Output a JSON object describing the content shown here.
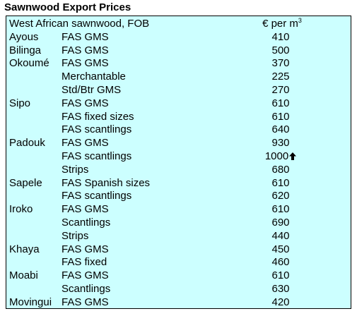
{
  "title": "Sawnwood Export Prices",
  "table": {
    "header": {
      "description": "West African sawnwood, FOB",
      "unit_prefix": "€ per m",
      "unit_superscript": "3"
    },
    "rows": [
      {
        "species": "Ayous",
        "grade": "FAS GMS",
        "price": "410"
      },
      {
        "species": "Bilinga",
        "grade": "FAS GMS",
        "price": "500"
      },
      {
        "species": "Okoumé",
        "grade": "FAS GMS",
        "price": "370"
      },
      {
        "species": "",
        "grade": "Merchantable",
        "price": "225"
      },
      {
        "species": "",
        "grade": "Std/Btr GMS",
        "price": "270"
      },
      {
        "species": "Sipo",
        "grade": "FAS GMS",
        "price": "610"
      },
      {
        "species": "",
        "grade": "FAS fixed sizes",
        "price": "610"
      },
      {
        "species": "",
        "grade": "FAS scantlings",
        "price": "640"
      },
      {
        "species": "Padouk",
        "grade": "FAS GMS",
        "price": "930"
      },
      {
        "species": "",
        "grade": "FAS scantlings",
        "price": "1000",
        "trend_icon": "up-arrow-icon"
      },
      {
        "species": "",
        "grade": "Strips",
        "price": "680"
      },
      {
        "species": "Sapele",
        "grade": "FAS Spanish sizes",
        "price": "610"
      },
      {
        "species": "",
        "grade": "FAS scantlings",
        "price": "620"
      },
      {
        "species": "Iroko",
        "grade": "FAS GMS",
        "price": "610"
      },
      {
        "species": "",
        "grade": "Scantlings",
        "price": "690"
      },
      {
        "species": "",
        "grade": "Strips",
        "price": "440"
      },
      {
        "species": "Khaya",
        "grade": "FAS GMS",
        "price": "450"
      },
      {
        "species": "",
        "grade": "FAS fixed",
        "price": "460"
      },
      {
        "species": "Moabi",
        "grade": "FAS GMS",
        "price": "610"
      },
      {
        "species": "",
        "grade": "Scantlings",
        "price": "630"
      },
      {
        "species": "Movingui",
        "grade": "FAS GMS",
        "price": "420"
      }
    ]
  },
  "colors": {
    "box_background": "#ccffff",
    "border": "#000000",
    "text": "#000000"
  }
}
